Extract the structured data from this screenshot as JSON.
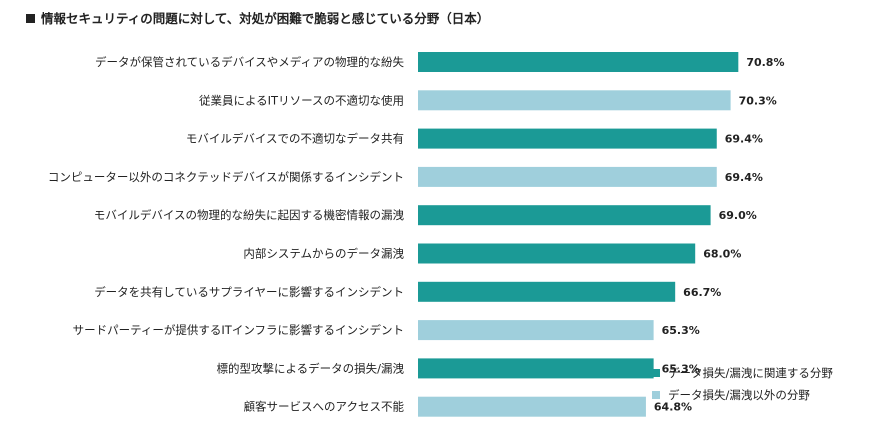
{
  "title": "情報セキュリティの問題に対して、対処が困難で脆弱と感じている分野（日本）",
  "colors": {
    "related": "#1b9a96",
    "other": "#9fcfdc",
    "text": "#222222"
  },
  "legend": {
    "related": "データ損失/漏洩に関連する分野",
    "other": "データ損失/漏洩以外の分野"
  },
  "chart_data": {
    "type": "bar",
    "orientation": "horizontal",
    "value_suffix": "%",
    "categories": [
      "データが保管されているデバイスやメディアの物理的な紛失",
      "従業員によるITリソースの不適切な使用",
      "モバイルデバイスでの不適切なデータ共有",
      "コンピューター以外のコネクテッドデバイスが関係するインシデント",
      "モバイルデバイスの物理的な紛失に起因する機密情報の漏洩",
      "内部システムからのデータ漏洩",
      "データを共有しているサプライヤーに影響するインシデント",
      "サードパーティーが提供するITインフラに影響するインシデント",
      "標的型攻撃によるデータの損失/漏洩",
      "顧客サービスへのアクセス不能"
    ],
    "values": [
      70.8,
      70.3,
      69.4,
      69.4,
      69.0,
      68.0,
      66.7,
      65.3,
      65.3,
      64.8
    ],
    "value_labels": [
      "70.8%",
      "70.3%",
      "69.4%",
      "69.4%",
      "69.0%",
      "68.0%",
      "66.7%",
      "65.3%",
      "65.3%",
      "64.8%"
    ],
    "groups": [
      "related",
      "other",
      "related",
      "other",
      "related",
      "related",
      "related",
      "other",
      "related",
      "other"
    ],
    "xlim": [
      50,
      71
    ]
  }
}
